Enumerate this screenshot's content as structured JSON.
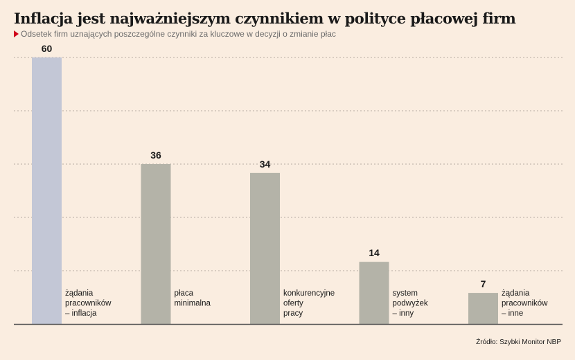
{
  "title": "Inflacja jest najważniejszym czynnikiem w polityce płacowej firm",
  "subtitle": "Odsetek firm uznających poszczególne czynniki za kluczowe w decyzji o zmianie płac",
  "source": "Źródło: Szybki Monitor NBP",
  "colors": {
    "highlight_bar": "#c3c7d6",
    "bar": "#b4b3a8",
    "grid": "#b5aca2",
    "axis": "#555555",
    "background": "#faede0"
  },
  "chart_data": {
    "type": "bar",
    "categories": [
      [
        "żądania",
        "pracowników",
        "– inflacja"
      ],
      [
        "płaca",
        "minimalna"
      ],
      [
        "konkurencyjne",
        "oferty",
        "pracy"
      ],
      [
        "system",
        "podwyżek",
        "– inny"
      ],
      [
        "żądania",
        "pracowników",
        "– inne"
      ]
    ],
    "values": [
      60,
      36,
      34,
      14,
      7
    ],
    "value_labels": [
      "60",
      "36",
      "34",
      "14",
      "7"
    ],
    "highlight_index": 0,
    "ylim": [
      0,
      60
    ],
    "grid": true,
    "xlabel": "",
    "ylabel": ""
  }
}
